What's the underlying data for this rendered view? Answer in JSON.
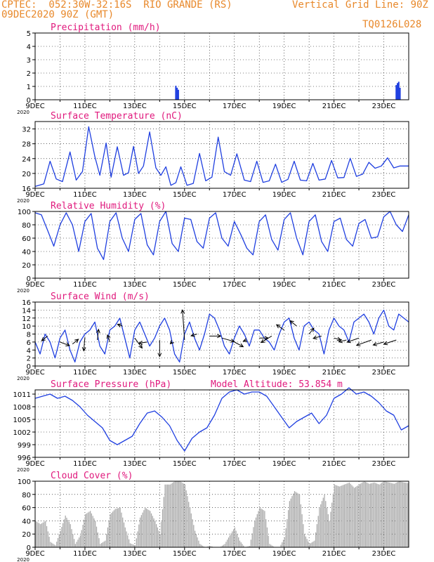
{
  "header": {
    "line1_left": "CPTEC:  052:30W-32:16S  RIO GRANDE (RS)",
    "line1_right": "Vertical Grid Line: 90Z",
    "line2_left": "09DEC2020 90Z (GMT)",
    "line2_right": "TQ0126L028"
  },
  "colors": {
    "header": "#e8882a",
    "title": "#e0197d",
    "line": "#1f3fe0",
    "cloud": "#a8a8a8",
    "arrow": "#000000"
  },
  "x_axis": {
    "labels": [
      "9DEC",
      "11DEC",
      "13DEC",
      "15DEC",
      "17DEC",
      "19DEC",
      "21DEC",
      "23DEC"
    ],
    "label_days": [
      0,
      2,
      4,
      6,
      8,
      10,
      12,
      14
    ],
    "range_days": [
      0,
      15
    ],
    "year_tag": "2020"
  },
  "chart_data": [
    {
      "type": "bar",
      "title": "Precipitation (mm/h)",
      "ylim": [
        0,
        5
      ],
      "yticks": [
        0,
        1,
        2,
        3,
        4,
        5
      ],
      "x": [
        5.65,
        5.7,
        5.75,
        14.5,
        14.55,
        14.6,
        14.65
      ],
      "values": [
        1.05,
        0.9,
        0.75,
        1.1,
        1.25,
        1.35,
        0.9
      ]
    },
    {
      "type": "line",
      "title": "Surface Temperature (nC)",
      "ylim": [
        16,
        34
      ],
      "yticks": [
        16,
        20,
        24,
        28,
        32
      ],
      "x": [
        0,
        0.35,
        0.6,
        0.85,
        1.1,
        1.4,
        1.65,
        1.9,
        2.15,
        2.4,
        2.6,
        2.85,
        3.05,
        3.3,
        3.55,
        3.75,
        3.95,
        4.15,
        4.35,
        4.6,
        4.85,
        5.05,
        5.25,
        5.45,
        5.65,
        5.85,
        6.1,
        6.35,
        6.6,
        6.85,
        7.1,
        7.35,
        7.6,
        7.85,
        8.1,
        8.4,
        8.65,
        8.9,
        9.15,
        9.4,
        9.65,
        9.9,
        10.15,
        10.4,
        10.65,
        10.9,
        11.15,
        11.4,
        11.65,
        11.9,
        12.15,
        12.4,
        12.65,
        12.9,
        13.15,
        13.4,
        13.65,
        13.9,
        14.15,
        14.4,
        14.65,
        15
      ],
      "values": [
        16.5,
        17.2,
        23.3,
        18.5,
        17.8,
        25.8,
        18.2,
        20.5,
        32.6,
        24.5,
        19.5,
        28.2,
        19.0,
        27.2,
        19.5,
        20.2,
        27.3,
        20.0,
        22.0,
        31.2,
        21.5,
        19.5,
        21.8,
        16.8,
        17.5,
        21.8,
        16.8,
        17.3,
        25.4,
        18.0,
        19.0,
        29.8,
        20.5,
        19.5,
        25.3,
        18.2,
        17.8,
        23.3,
        17.6,
        18.0,
        22.5,
        17.6,
        18.4,
        23.3,
        18.2,
        18.0,
        22.7,
        18.2,
        18.5,
        23.5,
        18.8,
        18.9,
        24.1,
        19.2,
        19.8,
        23.0,
        21.4,
        22.0,
        24.2,
        21.5,
        22.0,
        22.0
      ]
    },
    {
      "type": "line",
      "title": "Relative Humidity (%)",
      "ylim": [
        0,
        100
      ],
      "yticks": [
        0,
        20,
        40,
        60,
        80,
        100
      ],
      "x": [
        0,
        0.25,
        0.5,
        0.75,
        1.0,
        1.25,
        1.5,
        1.75,
        2.0,
        2.25,
        2.5,
        2.75,
        3.0,
        3.25,
        3.5,
        3.75,
        4.0,
        4.25,
        4.5,
        4.75,
        5.0,
        5.25,
        5.5,
        5.75,
        6.0,
        6.25,
        6.5,
        6.75,
        7.0,
        7.25,
        7.5,
        7.75,
        8.0,
        8.25,
        8.5,
        8.75,
        9.0,
        9.25,
        9.5,
        9.75,
        10.0,
        10.25,
        10.5,
        10.75,
        11.0,
        11.25,
        11.5,
        11.75,
        12.0,
        12.25,
        12.5,
        12.75,
        13.0,
        13.25,
        13.5,
        13.75,
        14.0,
        14.25,
        14.5,
        14.75,
        15
      ],
      "values": [
        98,
        95,
        72,
        48,
        80,
        98,
        80,
        40,
        85,
        97,
        45,
        28,
        85,
        98,
        60,
        40,
        88,
        97,
        50,
        35,
        85,
        100,
        52,
        40,
        90,
        88,
        55,
        45,
        90,
        98,
        60,
        48,
        85,
        66,
        45,
        35,
        85,
        95,
        58,
        42,
        88,
        98,
        60,
        35,
        85,
        95,
        55,
        40,
        85,
        90,
        58,
        48,
        82,
        88,
        60,
        62,
        92,
        100,
        80,
        70,
        95
      ]
    },
    {
      "type": "line",
      "title": "Surface Wind (m/s)",
      "ylim": [
        0,
        16
      ],
      "yticks": [
        0,
        2,
        4,
        6,
        8,
        10,
        12,
        14,
        16
      ],
      "x": [
        0,
        0.2,
        0.4,
        0.6,
        0.8,
        1.0,
        1.2,
        1.4,
        1.6,
        1.8,
        2.0,
        2.2,
        2.4,
        2.6,
        2.8,
        3.0,
        3.2,
        3.4,
        3.6,
        3.8,
        4.0,
        4.2,
        4.4,
        4.6,
        4.8,
        5.0,
        5.2,
        5.4,
        5.6,
        5.8,
        6.0,
        6.2,
        6.4,
        6.6,
        6.8,
        7.0,
        7.2,
        7.4,
        7.6,
        7.8,
        8.0,
        8.2,
        8.4,
        8.6,
        8.8,
        9.0,
        9.2,
        9.4,
        9.6,
        9.8,
        10.0,
        10.2,
        10.4,
        10.6,
        10.8,
        11.0,
        11.2,
        11.4,
        11.6,
        11.8,
        12.0,
        12.2,
        12.4,
        12.6,
        12.8,
        13.0,
        13.2,
        13.4,
        13.6,
        13.8,
        14.0,
        14.2,
        14.4,
        14.6,
        14.8,
        15
      ],
      "values": [
        6,
        3,
        8,
        6,
        2,
        7,
        9,
        4,
        1,
        6,
        8,
        9,
        11,
        5,
        3,
        9,
        10,
        12,
        7,
        2,
        9,
        11,
        8,
        5,
        7,
        10,
        12,
        9,
        3,
        1,
        8,
        11,
        7,
        4,
        8,
        13,
        12,
        9,
        5,
        3,
        7,
        10,
        8,
        5,
        9,
        9,
        7,
        6,
        4,
        8,
        11,
        12,
        7,
        4,
        10,
        11,
        9,
        8,
        3,
        9,
        12,
        10,
        9,
        6,
        11,
        12,
        13,
        11,
        8,
        12,
        14,
        10,
        9,
        13,
        12,
        11
      ]
    },
    {
      "type": "line",
      "title": "Surface Pressure (hPa)",
      "subtitle": "Model Altitude: 53.854 m",
      "ylim": [
        996,
        1012
      ],
      "yticks": [
        996,
        999,
        1002,
        1005,
        1008,
        1011
      ],
      "x": [
        0,
        0.3,
        0.6,
        0.9,
        1.2,
        1.5,
        1.8,
        2.1,
        2.4,
        2.7,
        3.0,
        3.3,
        3.6,
        3.9,
        4.2,
        4.5,
        4.8,
        5.1,
        5.4,
        5.7,
        6.0,
        6.3,
        6.6,
        6.9,
        7.2,
        7.5,
        7.8,
        8.1,
        8.4,
        8.7,
        9.0,
        9.3,
        9.6,
        9.9,
        10.2,
        10.5,
        10.8,
        11.1,
        11.4,
        11.7,
        12.0,
        12.3,
        12.6,
        12.9,
        13.2,
        13.5,
        13.8,
        14.1,
        14.4,
        14.7,
        15
      ],
      "values": [
        1010,
        1010.5,
        1011,
        1010,
        1010.5,
        1009.5,
        1008,
        1006,
        1004.5,
        1003,
        1000,
        999,
        1000,
        1001,
        1004,
        1006.5,
        1007,
        1005.5,
        1003.5,
        1000,
        997.5,
        1000.5,
        1002,
        1003,
        1006,
        1010,
        1011.5,
        1012,
        1011,
        1011.5,
        1011.5,
        1010.5,
        1008,
        1005.5,
        1003,
        1004.5,
        1005.5,
        1006.5,
        1004,
        1006,
        1010,
        1011,
        1012.5,
        1011,
        1011.5,
        1010.5,
        1009,
        1007,
        1006,
        1002.5,
        1003.5
      ]
    },
    {
      "type": "area",
      "title": "Cloud Cover (%)",
      "ylim": [
        0,
        100
      ],
      "yticks": [
        0,
        20,
        40,
        60,
        80,
        100
      ],
      "x": [
        0,
        0.2,
        0.4,
        0.6,
        0.8,
        1.0,
        1.2,
        1.4,
        1.6,
        1.8,
        2.0,
        2.2,
        2.4,
        2.6,
        2.8,
        3.0,
        3.2,
        3.4,
        3.6,
        3.8,
        4.0,
        4.2,
        4.4,
        4.6,
        4.8,
        5.0,
        5.2,
        5.4,
        5.6,
        5.8,
        6.0,
        6.2,
        6.4,
        6.6,
        6.8,
        7.0,
        7.2,
        7.4,
        7.6,
        7.8,
        8.0,
        8.2,
        8.4,
        8.6,
        8.8,
        9.0,
        9.2,
        9.4,
        9.6,
        9.8,
        10.0,
        10.2,
        10.4,
        10.6,
        10.8,
        11.0,
        11.2,
        11.4,
        11.6,
        11.8,
        12.0,
        12.2,
        12.4,
        12.6,
        12.8,
        13.0,
        13.2,
        13.4,
        13.6,
        13.8,
        14.0,
        14.2,
        14.4,
        14.6,
        14.8,
        15
      ],
      "values": [
        40,
        35,
        40,
        8,
        3,
        25,
        48,
        35,
        5,
        18,
        50,
        55,
        40,
        5,
        10,
        50,
        58,
        60,
        30,
        6,
        3,
        45,
        60,
        55,
        40,
        20,
        95,
        95,
        100,
        100,
        95,
        60,
        25,
        5,
        0,
        2,
        0,
        0,
        5,
        18,
        30,
        10,
        0,
        2,
        40,
        60,
        55,
        5,
        0,
        0,
        15,
        70,
        85,
        80,
        20,
        5,
        10,
        60,
        80,
        40,
        95,
        92,
        95,
        98,
        90,
        95,
        100,
        96,
        98,
        95,
        100,
        98,
        96,
        100,
        98,
        97
      ]
    },
    {
      "type": "scatter",
      "title": "Surface Wind vectors",
      "x": [
        0.5,
        1.0,
        1.5,
        2.0,
        2.5,
        3.0,
        3.5,
        4.0,
        4.5,
        5.0,
        5.5,
        6.0,
        6.5,
        7.0,
        7.5,
        8.0,
        8.5,
        9.0,
        9.5,
        10.0,
        10.5,
        11.0,
        11.5,
        12.0,
        12.5,
        13.0,
        13.5,
        14.0,
        14.5
      ],
      "y": [
        7.5,
        6.0,
        5.5,
        7.2,
        6.5,
        6.0,
        10.0,
        7.0,
        6.0,
        6.5,
        6.0,
        6.5,
        8.0,
        7.5,
        7.0,
        6.0,
        6.5,
        7.0,
        7.5,
        9.0,
        10.0,
        8.0,
        7.5,
        7.0,
        6.5,
        7.0,
        6.5,
        6.0,
        6.5
      ],
      "u": [
        -2.0,
        3.2,
        2.0,
        -0.4,
        0.4,
        -0.8,
        -1.6,
        2.5,
        -2.8,
        0.0,
        -0.6,
        -0.7,
        -2.0,
        3.8,
        4.2,
        3.0,
        -1.2,
        3.0,
        -3.6,
        -2.6,
        -2.2,
        1.6,
        -2.8,
        2.3,
        -2.6,
        -4.0,
        -5.0,
        -3.6,
        -4.2
      ],
      "v": [
        -1.6,
        -1.2,
        1.6,
        -4.6,
        3.6,
        2.4,
        0.6,
        -3.4,
        -0.4,
        -5.6,
        -0.6,
        10.2,
        -0.6,
        0.0,
        -1.2,
        -1.6,
        -0.4,
        0.0,
        -2.2,
        1.8,
        1.8,
        2.0,
        -0.8,
        -0.6,
        -0.6,
        -1.4,
        -1.8,
        -1.0,
        -1.4
      ]
    }
  ]
}
